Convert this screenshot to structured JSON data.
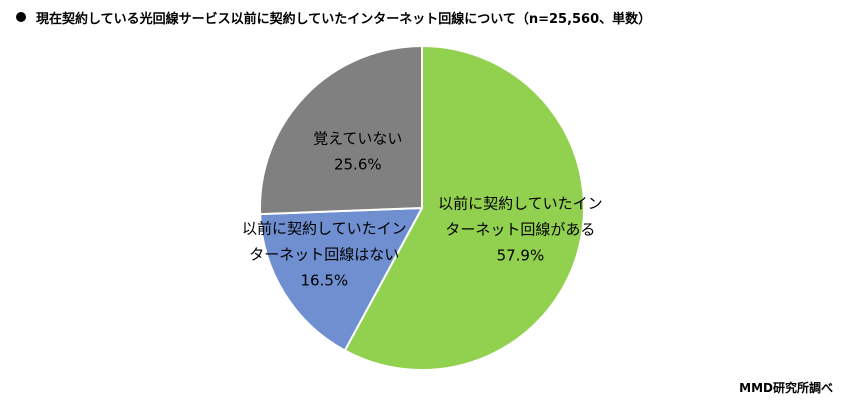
{
  "chart_data": {
    "type": "pie",
    "title": "現在契約している光回線サービス以前に契約していたインターネット回線について（n=25,560、単数）",
    "source": "MMD研究所調べ",
    "slices": [
      {
        "label_lines": [
          "以前に契約していたイン",
          "ターネット回線がある"
        ],
        "value_text": "57.9%",
        "value": 57.9,
        "color": "#92d050"
      },
      {
        "label_lines": [
          "以前に契約していたイン",
          "ターネット回線はない"
        ],
        "value_text": "16.5%",
        "value": 16.5,
        "color": "#6f8fd0"
      },
      {
        "label_lines": [
          "覚えていない"
        ],
        "value_text": "25.6%",
        "value": 25.6,
        "color": "#808080"
      }
    ],
    "start": "12 o'clock",
    "direction": "clockwise",
    "legend": "none"
  }
}
